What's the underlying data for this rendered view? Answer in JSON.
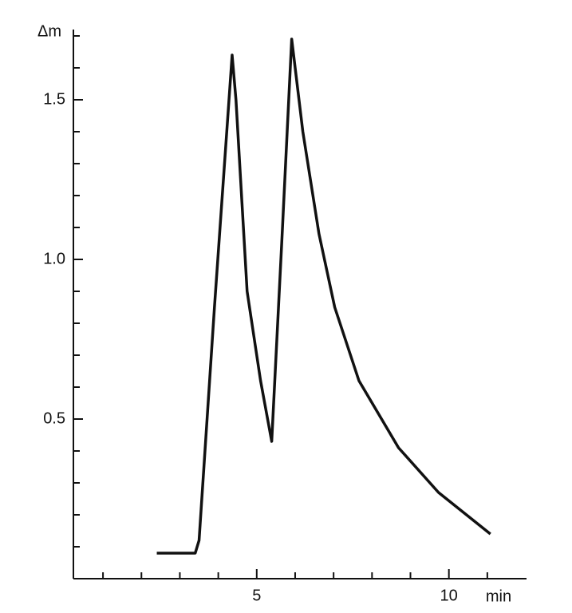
{
  "chart_data": {
    "type": "line",
    "y_label": "Δm",
    "x_label": "min",
    "x": [
      2.4,
      3.4,
      3.5,
      3.9,
      4.36,
      4.46,
      4.75,
      5.1,
      5.39,
      5.65,
      5.91,
      6.2,
      6.62,
      7.03,
      7.66,
      8.69,
      9.73,
      11.08
    ],
    "series": [
      {
        "color": "#111111",
        "values": [
          0.08,
          0.08,
          0.12,
          0.85,
          1.64,
          1.5,
          0.9,
          0.62,
          0.43,
          1.05,
          1.69,
          1.4,
          1.08,
          0.85,
          0.62,
          0.41,
          0.27,
          0.14
        ]
      }
    ],
    "xlim": [
      0.23,
      12.02
    ],
    "ylim": [
      0,
      1.7
    ],
    "xticks": [
      5,
      10
    ],
    "yticks": [
      0.5,
      {
        "value": 1.0,
        "label": "1.0"
      },
      1.5
    ],
    "xminor_ticks": [
      1,
      2,
      3,
      4,
      6,
      7,
      8,
      9,
      11
    ],
    "yminor_ticks": [
      0.1,
      0.2,
      0.3,
      0.4,
      0.6,
      0.7,
      0.8,
      0.9,
      1.1,
      1.2,
      1.3,
      1.4,
      1.6,
      1.7
    ]
  }
}
